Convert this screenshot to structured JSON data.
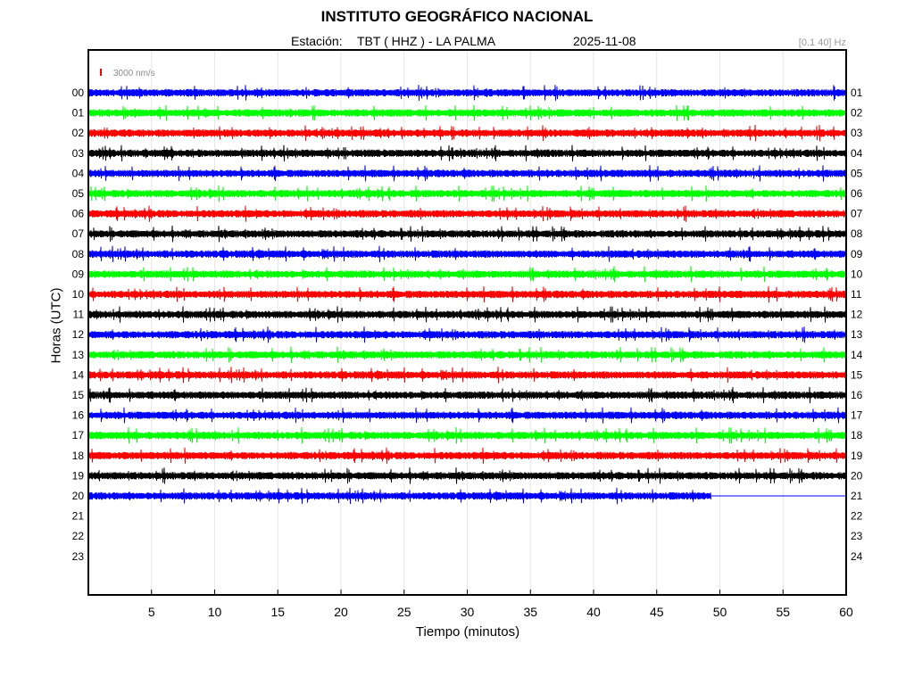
{
  "header": {
    "title": "INSTITUTO GEOGRÁFICO NACIONAL",
    "station_label": "Estación:",
    "station_value": "TBT ( HHZ ) - LA PALMA",
    "date": "2025-11-08",
    "filter": "[0.1 40] Hz"
  },
  "colors": {
    "trace_cycle": [
      "#0000ff",
      "#00ff00",
      "#ff0000",
      "#000000"
    ],
    "grid": "#e6e6e6",
    "scale_bar": "#ff0000"
  },
  "chart_data": {
    "type": "line",
    "title": "INSTITUTO GEOGRÁFICO NACIONAL",
    "xlabel": "Tiempo (minutos)",
    "ylabel": "Horas (UTC)",
    "xlim": [
      0,
      60
    ],
    "xticks": [
      5,
      10,
      15,
      20,
      25,
      30,
      35,
      40,
      45,
      50,
      55,
      60
    ],
    "grid": true,
    "scale_label": "3000 nm/s",
    "left_labels": [
      "00",
      "01",
      "02",
      "03",
      "04",
      "05",
      "06",
      "07",
      "08",
      "09",
      "10",
      "11",
      "12",
      "13",
      "14",
      "15",
      "16",
      "17",
      "18",
      "19",
      "20",
      "21",
      "22",
      "23"
    ],
    "right_labels": [
      "01",
      "02",
      "03",
      "04",
      "05",
      "06",
      "07",
      "08",
      "09",
      "10",
      "11",
      "12",
      "13",
      "14",
      "15",
      "16",
      "17",
      "18",
      "19",
      "20",
      "21",
      "22",
      "23",
      "24"
    ],
    "traces_recorded_hours": 21,
    "last_trace_end_minute": 49.3
  }
}
